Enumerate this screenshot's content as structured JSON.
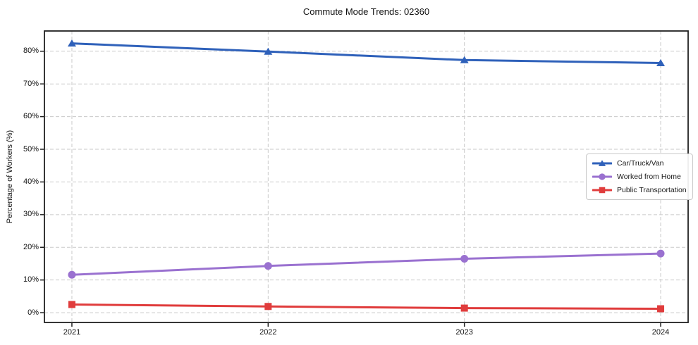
{
  "figure": {
    "title": "Commute Mode Trends: 02360"
  },
  "chart_data": {
    "type": "line",
    "title": "Commute Mode Trends: 02360",
    "xlabel": "",
    "ylabel": "Percentage of Workers (%)",
    "x": [
      2021,
      2022,
      2023,
      2024
    ],
    "x_tick_labels": [
      "2021",
      "2022",
      "2023",
      "2024"
    ],
    "y_ticks": [
      0,
      10,
      20,
      30,
      40,
      50,
      60,
      70,
      80
    ],
    "y_tick_labels": [
      "0%",
      "10%",
      "20%",
      "30%",
      "40%",
      "50%",
      "60%",
      "70%",
      "80%"
    ],
    "xlim": [
      2020.86,
      2024.14
    ],
    "ylim": [
      -3.0,
      86.2
    ],
    "grid": true,
    "grid_style": "dashed",
    "legend_position": "center right",
    "series": [
      {
        "name": "Car/Truck/Van",
        "marker": "triangle",
        "color": "#2f61ba",
        "values": [
          82.4,
          79.9,
          77.3,
          76.4
        ]
      },
      {
        "name": "Worked from Home",
        "marker": "circle",
        "color": "#9a71d0",
        "values": [
          11.6,
          14.3,
          16.5,
          18.1
        ]
      },
      {
        "name": "Public Transportation",
        "marker": "square",
        "color": "#e03c3c",
        "values": [
          2.5,
          1.9,
          1.4,
          1.2
        ]
      }
    ]
  }
}
